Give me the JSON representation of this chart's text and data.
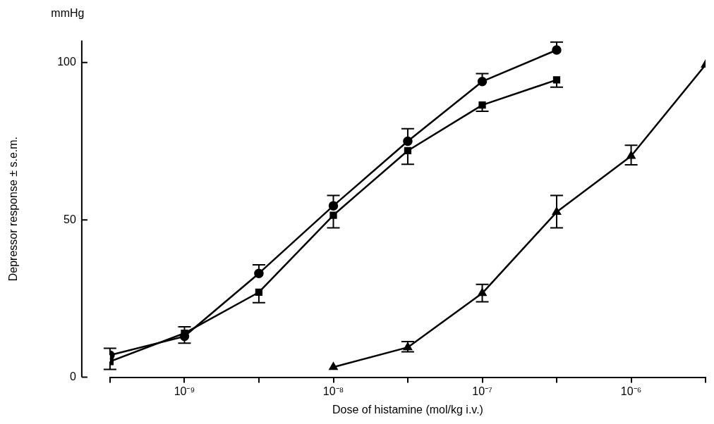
{
  "chart_data": {
    "type": "line",
    "xlabel": "Dose of histamine (mol/kg i.v.)",
    "ylabel": "Depressor response ± s.e.m.",
    "annotations": [
      "mmHg"
    ],
    "log": "x",
    "grid": false,
    "legend": false,
    "line_style": "solid",
    "xlim": [
      3.16e-10,
      3.16e-06
    ],
    "xticks": [
      {
        "value": 3.16e-10,
        "label": null
      },
      {
        "value": 1e-09,
        "label": "10⁻⁹"
      },
      {
        "value": 3.16e-09,
        "label": null
      },
      {
        "value": 1e-08,
        "label": "10⁻⁸"
      },
      {
        "value": 3.16e-08,
        "label": null
      },
      {
        "value": 1e-07,
        "label": "10⁻⁷"
      },
      {
        "value": 3.16e-07,
        "label": null
      },
      {
        "value": 1e-06,
        "label": "10⁻⁶"
      },
      {
        "value": 3.16e-06,
        "label": null
      }
    ],
    "ylim": [
      0,
      107
    ],
    "yticks": [
      0,
      50,
      100
    ],
    "series": [
      {
        "color": "#000000",
        "marker": "circle",
        "x": [
          3.16e-10,
          1e-09,
          3.16e-09,
          1e-08,
          3.16e-08,
          1e-07,
          3.16e-07
        ],
        "values": [
          7,
          13,
          33,
          54.5,
          75,
          94,
          104
        ],
        "errors": [
          [
            7,
            9.2
          ],
          [
            13,
            16
          ],
          [
            33,
            35.7
          ],
          [
            54.5,
            57.8
          ],
          [
            75,
            79
          ],
          [
            94,
            96.5
          ],
          [
            104,
            106.5
          ]
        ]
      },
      {
        "color": "#000000",
        "marker": "square",
        "x": [
          3.16e-10,
          1e-09,
          3.16e-09,
          1e-08,
          3.16e-08,
          1e-07,
          3.16e-07
        ],
        "values": [
          5,
          14,
          27,
          51.5,
          72,
          86.5,
          94.5
        ],
        "errors": [
          [
            2.5,
            5
          ],
          [
            10.8,
            14
          ],
          [
            23.7,
            27
          ],
          [
            47.5,
            51.5
          ],
          [
            67.7,
            72
          ],
          [
            84.5,
            86.5
          ],
          [
            92.2,
            94.5
          ]
        ]
      },
      {
        "color": "#000000",
        "marker": "triangle",
        "x": [
          1e-08,
          3.16e-08,
          1e-07,
          3.16e-07,
          1e-06,
          3.16e-06
        ],
        "values": [
          3.2,
          9.5,
          26.7,
          52.5,
          70.3,
          99.3
        ],
        "errors": [
          null,
          [
            8.1,
            11.3
          ],
          [
            24,
            29.5
          ],
          [
            47.5,
            57.8
          ],
          [
            67.5,
            73.7
          ],
          null
        ]
      }
    ]
  }
}
